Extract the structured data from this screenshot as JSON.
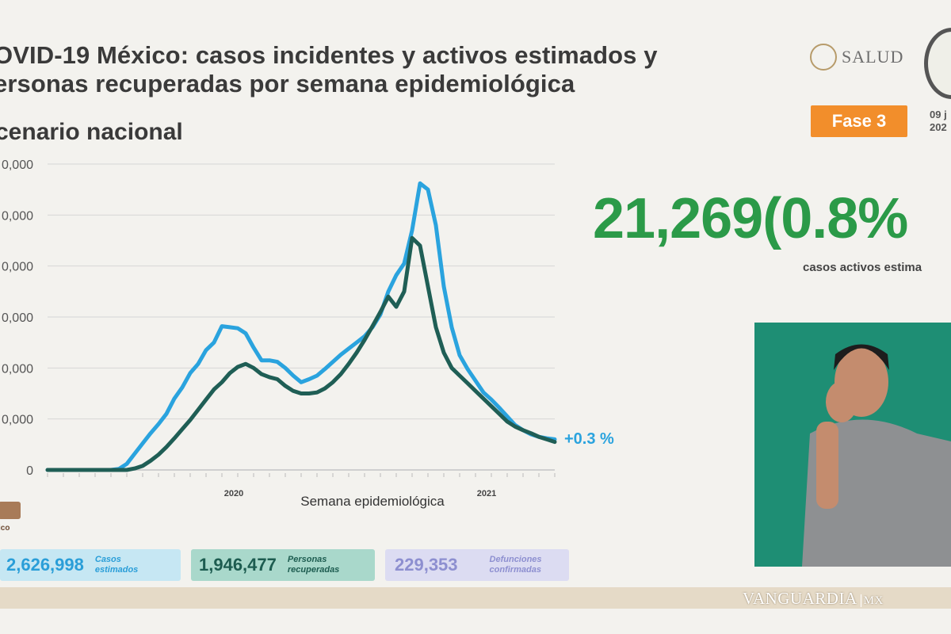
{
  "header": {
    "title_line1": "OVID-19 México: casos incidentes y activos estimados y",
    "title_line2": "ersonas recuperadas por semana epidemiológica",
    "subtitle": "cenario nacional"
  },
  "logos": {
    "salud_text": "SALUD",
    "salud_emblem": "mexico-coat-of-arms-icon",
    "seal_icon": "commemorative-seal-icon"
  },
  "phase": {
    "label": "Fase 3",
    "color": "#f28e2b"
  },
  "date": {
    "line1": "09 j",
    "line2": "202"
  },
  "highlight": {
    "value": "21,269(0.8%",
    "label": "casos activos estima",
    "color": "#2b9a48"
  },
  "chart_data": {
    "type": "line",
    "xlabel": "Semana epidemiológica",
    "ylabel": "",
    "year_labels": [
      "2020",
      "2021"
    ],
    "y_tick_labels": [
      "0",
      "0,000",
      "0,000",
      "0,000",
      "0,000",
      "0,000",
      "0,000"
    ],
    "y_tick_values": [
      0,
      1,
      2,
      3,
      4,
      5,
      6
    ],
    "ylim": [
      0,
      6
    ],
    "grid": "horizontal",
    "annotation": "+0.3 %",
    "series": [
      {
        "color": "#2aa3de",
        "values": [
          0,
          0,
          0,
          0,
          0,
          0,
          0,
          0,
          0,
          0.02,
          0.12,
          0.32,
          0.52,
          0.72,
          0.9,
          1.1,
          1.4,
          1.62,
          1.9,
          2.08,
          2.35,
          2.5,
          2.82,
          2.8,
          2.78,
          2.68,
          2.4,
          2.15,
          2.15,
          2.12,
          2,
          1.85,
          1.72,
          1.78,
          1.85,
          1.98,
          2.12,
          2.26,
          2.38,
          2.5,
          2.62,
          2.8,
          3.05,
          3.5,
          3.82,
          4.05,
          4.7,
          5.62,
          5.5,
          4.8,
          3.6,
          2.8,
          2.25,
          1.98,
          1.75,
          1.52,
          1.38,
          1.22,
          1.05,
          0.88,
          0.78,
          0.7,
          0.65,
          0.62,
          0.6
        ]
      },
      {
        "color": "#1f5e55",
        "values": [
          0,
          0,
          0,
          0,
          0,
          0,
          0,
          0,
          0,
          0,
          0,
          0.03,
          0.08,
          0.18,
          0.3,
          0.45,
          0.62,
          0.8,
          0.98,
          1.18,
          1.38,
          1.58,
          1.72,
          1.9,
          2.02,
          2.08,
          2,
          1.88,
          1.82,
          1.78,
          1.65,
          1.55,
          1.5,
          1.5,
          1.52,
          1.6,
          1.72,
          1.88,
          2.08,
          2.3,
          2.55,
          2.82,
          3.1,
          3.4,
          3.2,
          3.5,
          4.55,
          4.4,
          3.6,
          2.8,
          2.3,
          2,
          1.85,
          1.7,
          1.55,
          1.4,
          1.25,
          1.1,
          0.95,
          0.85,
          0.78,
          0.72,
          0.65,
          0.6,
          0.55
        ]
      }
    ]
  },
  "stats": [
    {
      "value": "2,626,998",
      "label1": "Casos",
      "label2": "estimados",
      "bg": "#c6e7f3",
      "fg": "#2a9ed8"
    },
    {
      "value": "1,946,477",
      "label1": "Personas",
      "label2": "recuperadas",
      "bg": "#a9d8cb",
      "fg": "#1d5c50"
    },
    {
      "value": "229,353",
      "label1": "Defunciones",
      "label2": "confirmadas",
      "bg": "#dcdcf2",
      "fg": "#8d8fd0"
    }
  ],
  "partial_logo": {
    "line1": "ico"
  },
  "watermark": "VANGUARDIA",
  "watermark_suffix": "MX"
}
